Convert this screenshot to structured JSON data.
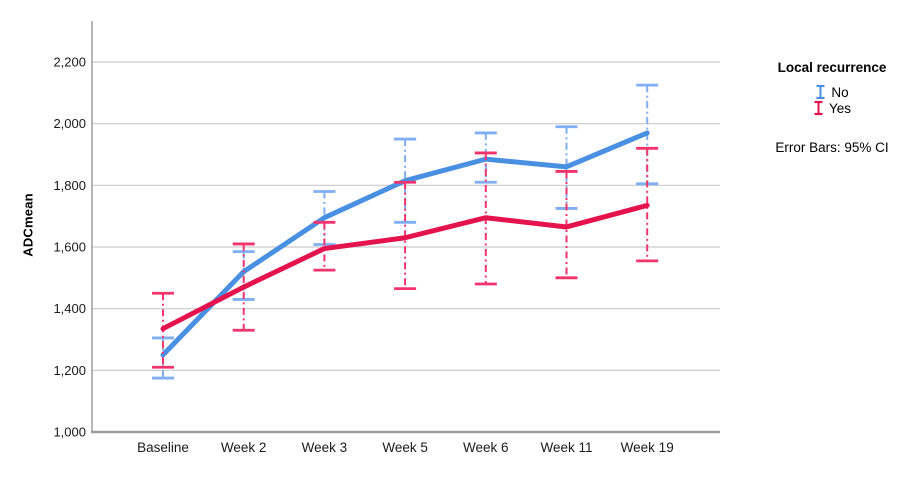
{
  "chart_data": {
    "type": "line",
    "title": "",
    "xlabel": "",
    "ylabel": "ADCmean",
    "categories": [
      "Baseline",
      "Week 2",
      "Week 3",
      "Week 5",
      "Week 6",
      "Week 11",
      "Week 19"
    ],
    "ylim": [
      1000,
      2200
    ],
    "yticks": [
      1000,
      1200,
      1400,
      1600,
      1800,
      2000,
      2200
    ],
    "ytick_labels": [
      "1,000",
      "1,200",
      "1,400",
      "1,600",
      "1,800",
      "2,000",
      "2,200"
    ],
    "grid": true,
    "error_bar_type": "95% CI",
    "series": [
      {
        "name": "No",
        "color": "#4A90E2",
        "errorbar_color": "#7FAEF2",
        "values": [
          1250,
          1520,
          1695,
          1815,
          1885,
          1860,
          1970
        ],
        "ci_low": [
          1175,
          1430,
          1608,
          1680,
          1810,
          1725,
          1805
        ],
        "ci_high": [
          1305,
          1585,
          1780,
          1950,
          1970,
          1990,
          2125
        ]
      },
      {
        "name": "Yes",
        "color": "#E4134E",
        "errorbar_color": "#F2336E",
        "values": [
          1335,
          1470,
          1595,
          1630,
          1695,
          1665,
          1735
        ],
        "ci_low": [
          1210,
          1330,
          1525,
          1465,
          1480,
          1500,
          1555
        ],
        "ci_high": [
          1450,
          1610,
          1680,
          1810,
          1905,
          1845,
          1920
        ]
      }
    ],
    "legend": {
      "title": "Local recurrence",
      "items": [
        "No",
        "Yes"
      ],
      "note": "Error Bars: 95% CI",
      "position": "right"
    }
  }
}
